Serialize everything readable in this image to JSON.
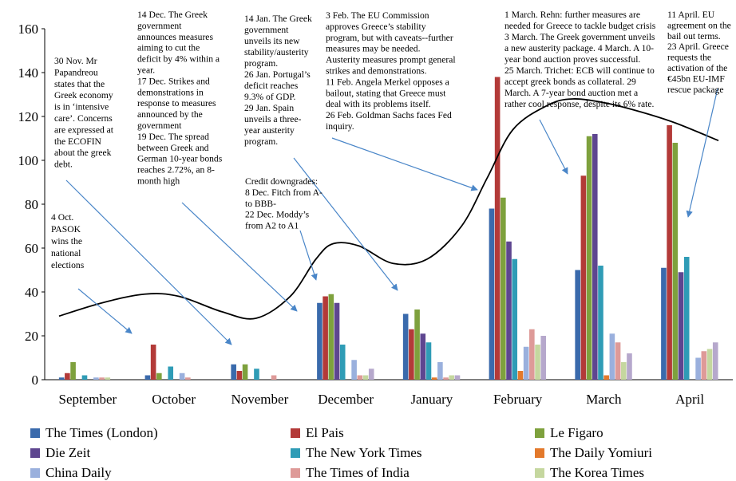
{
  "chart_data": {
    "type": "bar",
    "categories": [
      "September",
      "October",
      "November",
      "December",
      "January",
      "February",
      "March",
      "April"
    ],
    "ylim": [
      0,
      160
    ],
    "yticks": [
      0,
      20,
      40,
      60,
      80,
      100,
      120,
      140,
      160
    ],
    "grid": false,
    "legend_position": "bottom",
    "series": [
      {
        "name": "The Times (London)",
        "color": "#3a6aac",
        "values": [
          1,
          2,
          7,
          35,
          30,
          78,
          50,
          51
        ]
      },
      {
        "name": "El Pais",
        "color": "#b33a38",
        "values": [
          3,
          16,
          4,
          38,
          23,
          138,
          93,
          116
        ]
      },
      {
        "name": "Le Figaro",
        "color": "#7ea13d",
        "values": [
          8,
          3,
          7,
          39,
          32,
          83,
          111,
          108
        ]
      },
      {
        "name": "Die Zeit",
        "color": "#5e4690",
        "values": [
          0,
          0,
          0,
          35,
          21,
          63,
          112,
          49
        ]
      },
      {
        "name": "The New York Times",
        "color": "#2f9cb6",
        "values": [
          2,
          6,
          5,
          16,
          17,
          55,
          52,
          56
        ]
      },
      {
        "name": "The Daily Yomiuri",
        "color": "#e3792b",
        "values": [
          0,
          0,
          0,
          0,
          1,
          4,
          2,
          0
        ]
      },
      {
        "name": "China Daily",
        "color": "#9ab0dd",
        "values": [
          1,
          3,
          0,
          9,
          8,
          15,
          21,
          10
        ]
      },
      {
        "name": "The Times of India",
        "color": "#de9a98",
        "values": [
          1,
          1,
          2,
          2,
          1,
          23,
          17,
          13
        ]
      },
      {
        "name": "The Korea Times",
        "color": "#c5d79f",
        "values": [
          1,
          0,
          0,
          2,
          2,
          16,
          8,
          14
        ]
      },
      {
        "name": "",
        "color": "#b6a8cc",
        "values": [
          0,
          0,
          0,
          5,
          2,
          20,
          12,
          17
        ]
      }
    ],
    "trend_line": {
      "color": "#000000",
      "points": [
        {
          "x": 0.0,
          "y": 29
        },
        {
          "x": 0.5,
          "y": 35
        },
        {
          "x": 1.0,
          "y": 39
        },
        {
          "x": 1.4,
          "y": 38
        },
        {
          "x": 1.9,
          "y": 31
        },
        {
          "x": 2.3,
          "y": 28
        },
        {
          "x": 2.7,
          "y": 38
        },
        {
          "x": 3.0,
          "y": 55
        },
        {
          "x": 3.2,
          "y": 62
        },
        {
          "x": 3.5,
          "y": 61
        },
        {
          "x": 3.9,
          "y": 53
        },
        {
          "x": 4.3,
          "y": 55
        },
        {
          "x": 4.7,
          "y": 70
        },
        {
          "x": 5.0,
          "y": 92
        },
        {
          "x": 5.3,
          "y": 114
        },
        {
          "x": 5.7,
          "y": 125
        },
        {
          "x": 6.0,
          "y": 128
        },
        {
          "x": 6.4,
          "y": 126
        },
        {
          "x": 6.8,
          "y": 122
        },
        {
          "x": 7.2,
          "y": 117
        },
        {
          "x": 7.7,
          "y": 109
        }
      ]
    },
    "annotations": [
      {
        "id": "oct4",
        "lines": [
          "4 Oct.",
          "PASOK",
          "wins the",
          "national",
          "elections"
        ]
      },
      {
        "id": "nov30",
        "lines": [
          "30 Nov. Mr",
          "Papandreou",
          "states that the",
          "Greek economy",
          "is in ‘intensive",
          "care’. Concerns",
          "are expressed at",
          "the ECOFIN",
          "about the greek",
          "debt."
        ]
      },
      {
        "id": "dec14",
        "lines": [
          "14 Dec. The Greek",
          "government",
          "announces measures",
          "aiming to cut the",
          "deficit by 4% within a",
          "year.",
          "17 Dec. Strikes and",
          "demonstrations in",
          "response to measures",
          "announced by the",
          "government",
          "19 Dec. The spread",
          "between Greek and",
          "German 10-year bonds",
          "reaches 2.72%, an 8-",
          "month high"
        ]
      },
      {
        "id": "credit",
        "lines": [
          "Credit downgrades:",
          "8 Dec. Fitch from A-",
          "to BBB-",
          "22 Dec. Moddy’s",
          "from A2 to A1"
        ]
      },
      {
        "id": "jan14",
        "lines": [
          "14 Jan. The Greek",
          "government",
          "unveils its new",
          "stability/austerity",
          "program.",
          "26 Jan. Portugal’s",
          "deficit reaches",
          "9.3% of GDP.",
          "29 Jan. Spain",
          "unveils a three-",
          "year austerity",
          "program."
        ]
      },
      {
        "id": "feb3",
        "lines": [
          "3 Feb. The EU Commission",
          "approves Greece’s stability",
          "program, but with caveats--further",
          "measures may be needed.",
          "Austerity measures prompt general",
          "strikes and demonstrations.",
          "11 Feb. Angela Merkel opposes a",
          "bailout, stating that Greece must",
          "deal with its problems itself.",
          "26 Feb. Goldman Sachs faces Fed",
          "inquiry."
        ]
      },
      {
        "id": "mar1",
        "lines": [
          "1 March. Rehn: further measures are",
          "needed for Greece to tackle budget crisis",
          "3 March. The Greek government unveils",
          "a new austerity package. 4 March. A 10-",
          "year bond auction proves successful.",
          "25 March. Trichet: ECB will continue to",
          "accept greek bonds as collateral. 29",
          "March. A 7-year bond auction met a",
          "rather cool response, despite its 6% rate."
        ]
      },
      {
        "id": "apr11",
        "lines": [
          "11 April. EU",
          "agreement on the",
          "bail out terms.",
          "23 April. Greece",
          "requests the",
          "activation of the",
          "€45bn EU-IMF",
          "rescue package"
        ]
      }
    ]
  }
}
